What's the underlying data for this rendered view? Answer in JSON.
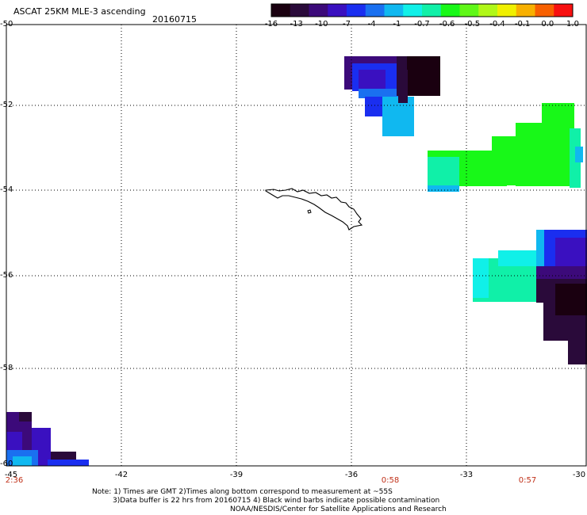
{
  "header": {
    "title": "ASCAT 25KM MLE-3 ascending",
    "date": "20160715"
  },
  "colorbar": {
    "labels": [
      "-16",
      "-13",
      "-10",
      "-7",
      "-4",
      "-1",
      "-0.7",
      "-0.6",
      "-0.5",
      "-0.4",
      "-0.1",
      "0.0",
      "1.0"
    ],
    "colors": [
      "#1a0010",
      "#2a0a3a",
      "#3c0a7a",
      "#3a10c0",
      "#1a2ef0",
      "#1a70f0",
      "#10b8f0",
      "#10f0e8",
      "#10f0a8",
      "#18f818",
      "#60f818",
      "#b0f818",
      "#f0f000",
      "#f8b000",
      "#f86000",
      "#f81010"
    ]
  },
  "map": {
    "lat_labels": [
      "-50",
      "-52",
      "-54",
      "-56",
      "-58",
      "-60"
    ],
    "lon_labels": [
      "-45",
      "-42",
      "-39",
      "-36",
      "-33",
      "-30"
    ],
    "time_labels": [
      "2:36",
      "0:58",
      "0:57"
    ],
    "island": "South Georgia"
  },
  "notes": {
    "line1": "Note: 1) Times are GMT 2)Times along bottom correspond to measurement at ~55S",
    "line2": "3)Data buffer is 22 hrs from 20160715 4) Black wind barbs indicate possible contamination",
    "line3": "NOAA/NESDIS/Center for Satellite Applications and Research"
  }
}
